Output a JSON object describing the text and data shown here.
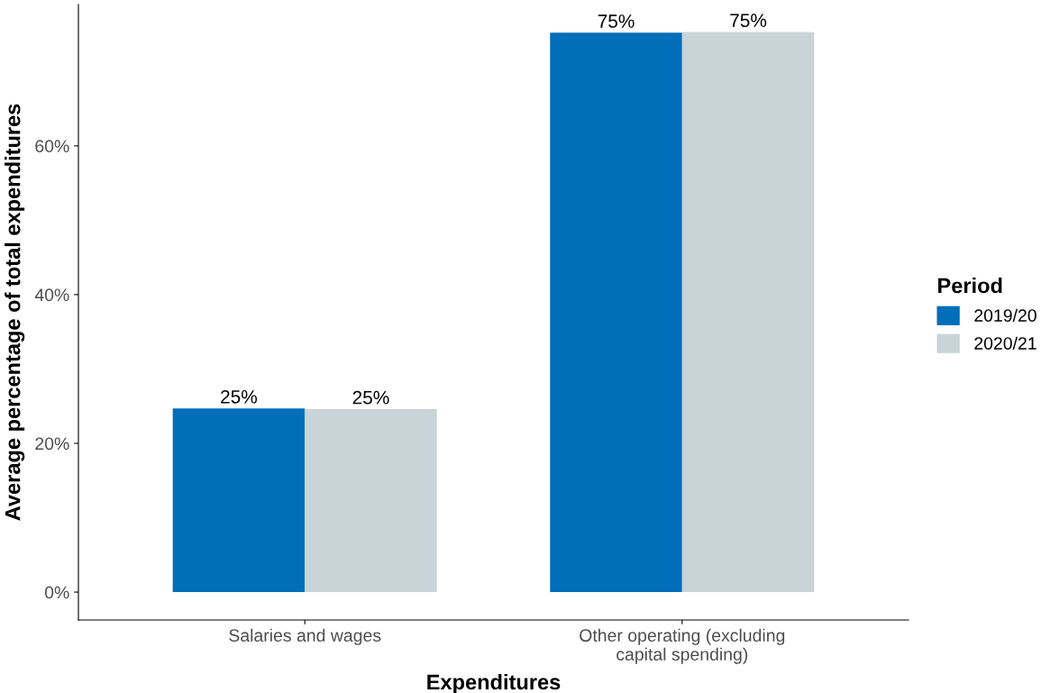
{
  "chart_data": {
    "type": "bar",
    "xlabel": "Expenditures",
    "ylabel": "Average percentage of total expenditures",
    "legend_title": "Period",
    "categories": [
      "Salaries and wages",
      "Other operating (excluding\ncapital spending)"
    ],
    "series": [
      {
        "name": "2019/20",
        "color": "#006eb8",
        "values": [
          24.7,
          75.2
        ],
        "value_labels": [
          "25%",
          "75%"
        ]
      },
      {
        "name": "2020/21",
        "color": "#c9d4d9",
        "values": [
          24.6,
          75.3
        ],
        "value_labels": [
          "25%",
          "75%"
        ]
      }
    ],
    "ylim": [
      -3.75,
      79
    ],
    "yticks": [
      {
        "value": 0,
        "label": "0%"
      },
      {
        "value": 20,
        "label": "20%"
      },
      {
        "value": 40,
        "label": "40%"
      },
      {
        "value": 60,
        "label": "60%"
      }
    ],
    "grid": false,
    "legend": "right"
  }
}
